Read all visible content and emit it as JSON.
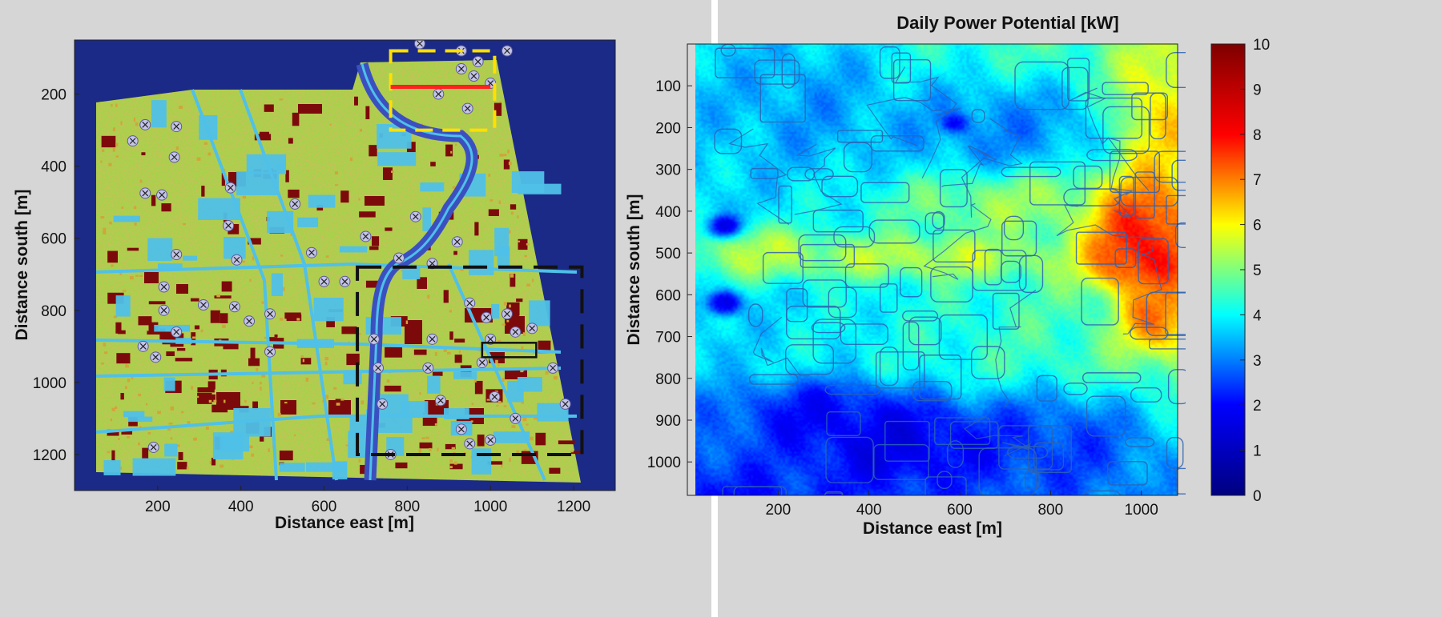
{
  "chart_data": [
    {
      "type": "heatmap",
      "title": "",
      "xlabel": "Distance east [m]",
      "ylabel": "Distance south [m]",
      "xlim": [
        0,
        1300
      ],
      "ylim": [
        1300,
        50
      ],
      "xticks": [
        "200",
        "400",
        "600",
        "800",
        "1000",
        "1200"
      ],
      "yticks": [
        "200",
        "400",
        "600",
        "800",
        "1000",
        "1200"
      ],
      "colors": {
        "background": "#1b2a86",
        "vegetation": "#a6d14a",
        "water_open": "#4fc0e8",
        "river": "#3b50c0",
        "buildings": "#7d0a0a",
        "mixed_urban": "#d0a53a",
        "highlight_yellow_box": "#ffe000",
        "highlight_black_box": "#111111",
        "transect": "#ff2020",
        "markers": "#c4c4e8"
      },
      "yellow_box": {
        "x": [
          760,
          1010
        ],
        "y": [
          80,
          300
        ]
      },
      "black_dashed_box": {
        "x": [
          680,
          1220
        ],
        "y": [
          680,
          1200
        ]
      },
      "small_box": {
        "x": [
          980,
          1110
        ],
        "y": [
          890,
          930
        ]
      },
      "transect": {
        "x": [
          760,
          1000
        ],
        "y": [
          180,
          180
        ]
      },
      "markers": [
        {
          "x": 830,
          "y": 60
        },
        {
          "x": 930,
          "y": 80
        },
        {
          "x": 1040,
          "y": 80
        },
        {
          "x": 930,
          "y": 130
        },
        {
          "x": 970,
          "y": 110
        },
        {
          "x": 875,
          "y": 200
        },
        {
          "x": 960,
          "y": 150
        },
        {
          "x": 1000,
          "y": 170
        },
        {
          "x": 945,
          "y": 240
        },
        {
          "x": 140,
          "y": 330
        },
        {
          "x": 170,
          "y": 285
        },
        {
          "x": 245,
          "y": 290
        },
        {
          "x": 240,
          "y": 375
        },
        {
          "x": 170,
          "y": 475
        },
        {
          "x": 210,
          "y": 480
        },
        {
          "x": 245,
          "y": 645
        },
        {
          "x": 215,
          "y": 735
        },
        {
          "x": 215,
          "y": 800
        },
        {
          "x": 245,
          "y": 860
        },
        {
          "x": 165,
          "y": 900
        },
        {
          "x": 195,
          "y": 930
        },
        {
          "x": 310,
          "y": 785
        },
        {
          "x": 375,
          "y": 460
        },
        {
          "x": 370,
          "y": 565
        },
        {
          "x": 390,
          "y": 660
        },
        {
          "x": 385,
          "y": 790
        },
        {
          "x": 420,
          "y": 830
        },
        {
          "x": 470,
          "y": 810
        },
        {
          "x": 470,
          "y": 915
        },
        {
          "x": 530,
          "y": 505
        },
        {
          "x": 570,
          "y": 640
        },
        {
          "x": 600,
          "y": 720
        },
        {
          "x": 650,
          "y": 720
        },
        {
          "x": 700,
          "y": 595
        },
        {
          "x": 780,
          "y": 655
        },
        {
          "x": 860,
          "y": 670
        },
        {
          "x": 820,
          "y": 540
        },
        {
          "x": 920,
          "y": 610
        },
        {
          "x": 950,
          "y": 780
        },
        {
          "x": 990,
          "y": 820
        },
        {
          "x": 1040,
          "y": 810
        },
        {
          "x": 1060,
          "y": 860
        },
        {
          "x": 1100,
          "y": 850
        },
        {
          "x": 1000,
          "y": 880
        },
        {
          "x": 980,
          "y": 945
        },
        {
          "x": 1010,
          "y": 1040
        },
        {
          "x": 1060,
          "y": 1100
        },
        {
          "x": 1150,
          "y": 960
        },
        {
          "x": 1180,
          "y": 1060
        },
        {
          "x": 860,
          "y": 880
        },
        {
          "x": 850,
          "y": 960
        },
        {
          "x": 730,
          "y": 960
        },
        {
          "x": 740,
          "y": 1060
        },
        {
          "x": 760,
          "y": 1200
        },
        {
          "x": 930,
          "y": 1130
        },
        {
          "x": 950,
          "y": 1170
        },
        {
          "x": 1000,
          "y": 1160
        },
        {
          "x": 190,
          "y": 1180
        },
        {
          "x": 880,
          "y": 1050
        },
        {
          "x": 720,
          "y": 880
        }
      ]
    },
    {
      "type": "heatmap",
      "title": "Daily Power Potential [kW]",
      "xlabel": "Distance east [m]",
      "ylabel": "Distance south [m]",
      "xlim": [
        0,
        1080
      ],
      "ylim": [
        1080,
        0
      ],
      "xticks": [
        "200",
        "400",
        "600",
        "800",
        "1000"
      ],
      "yticks": [
        "100",
        "200",
        "300",
        "400",
        "500",
        "600",
        "700",
        "800",
        "900",
        "1000"
      ],
      "colorbar": {
        "min": 0,
        "max": 10,
        "ticks": [
          "0",
          "1",
          "2",
          "3",
          "4",
          "5",
          "6",
          "7",
          "8",
          "9",
          "10"
        ],
        "colormap": [
          "#000080",
          "#0000ff",
          "#00ffff",
          "#ffff00",
          "#ff0000",
          "#800000"
        ]
      },
      "field_features": [
        {
          "x": 1000,
          "y": 420,
          "value": 9.5,
          "sx": 90,
          "sy": 80
        },
        {
          "x": 1000,
          "y": 520,
          "value": 9.0,
          "sx": 100,
          "sy": 60
        },
        {
          "x": 1040,
          "y": 650,
          "value": 8.0,
          "sx": 70,
          "sy": 70
        },
        {
          "x": 1040,
          "y": 200,
          "value": 7.0,
          "sx": 80,
          "sy": 160
        },
        {
          "x": 520,
          "y": 510,
          "value": 6.0,
          "sx": 240,
          "sy": 40
        },
        {
          "x": 150,
          "y": 500,
          "value": 6.0,
          "sx": 140,
          "sy": 50
        },
        {
          "x": 750,
          "y": 380,
          "value": 5.5,
          "sx": 220,
          "sy": 60
        },
        {
          "x": 80,
          "y": 440,
          "value": 0.2,
          "sx": 28,
          "sy": 22
        },
        {
          "x": 80,
          "y": 620,
          "value": 0.3,
          "sx": 28,
          "sy": 22
        },
        {
          "x": 590,
          "y": 190,
          "value": 0.5,
          "sx": 26,
          "sy": 18
        },
        {
          "x": 480,
          "y": 950,
          "value": 1.0,
          "sx": 170,
          "sy": 80
        },
        {
          "x": 300,
          "y": 880,
          "value": 1.5,
          "sx": 150,
          "sy": 60
        },
        {
          "x": 800,
          "y": 950,
          "value": 2.0,
          "sx": 180,
          "sy": 90
        },
        {
          "x": 280,
          "y": 150,
          "value": 3.0,
          "sx": 140,
          "sy": 120
        },
        {
          "x": 700,
          "y": 200,
          "value": 2.5,
          "sx": 200,
          "sy": 90
        }
      ]
    }
  ]
}
